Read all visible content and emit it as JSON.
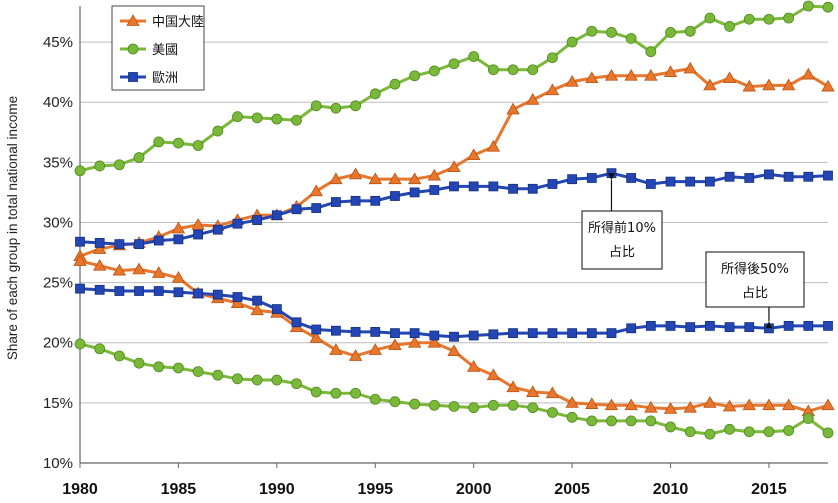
{
  "chart_data": {
    "type": "line",
    "ylabel": "Share of each group in total national income",
    "xlim": [
      1980,
      2018
    ],
    "ylim": [
      10,
      48
    ],
    "x_ticks": [
      1980,
      1985,
      1990,
      1995,
      2000,
      2005,
      2010,
      2015
    ],
    "y_ticks": [
      10,
      15,
      20,
      25,
      30,
      35,
      40,
      45
    ],
    "y_tick_labels": [
      "10%",
      "15%",
      "20%",
      "25%",
      "30%",
      "35%",
      "40%",
      "45%"
    ],
    "grid": "horizontal",
    "legend_position": "top-left",
    "x": [
      1980,
      1981,
      1982,
      1983,
      1984,
      1985,
      1986,
      1987,
      1988,
      1989,
      1990,
      1991,
      1992,
      1993,
      1994,
      1995,
      1996,
      1997,
      1998,
      1999,
      2000,
      2001,
      2002,
      2003,
      2004,
      2005,
      2006,
      2007,
      2008,
      2009,
      2010,
      2011,
      2012,
      2013,
      2014,
      2015,
      2016,
      2017,
      2018
    ],
    "series": [
      {
        "name": "中国大陸",
        "color": "#e8762c",
        "marker": "triangle",
        "group": "top10",
        "values": [
          27.2,
          27.8,
          28.1,
          28.3,
          28.8,
          29.5,
          29.8,
          29.7,
          30.2,
          30.6,
          30.6,
          31.3,
          32.6,
          33.6,
          34.0,
          33.6,
          33.6,
          33.6,
          33.9,
          34.6,
          35.6,
          36.3,
          39.4,
          40.2,
          41.0,
          41.7,
          42.0,
          42.2,
          42.2,
          42.2,
          42.5,
          42.8,
          41.4,
          42.0,
          41.3,
          41.4,
          41.4,
          42.3,
          41.3
        ]
      },
      {
        "name": "美國",
        "color": "#7ab83a",
        "marker": "circle",
        "group": "top10",
        "values": [
          34.3,
          34.7,
          34.8,
          35.4,
          36.7,
          36.6,
          36.4,
          37.6,
          38.8,
          38.7,
          38.6,
          38.5,
          39.7,
          39.5,
          39.7,
          40.7,
          41.5,
          42.2,
          42.6,
          43.2,
          43.8,
          42.7,
          42.7,
          42.7,
          43.7,
          45.0,
          45.9,
          45.8,
          45.3,
          44.2,
          45.8,
          45.9,
          47.0,
          46.3,
          46.9,
          46.9,
          47.0,
          48.0,
          47.9
        ]
      },
      {
        "name": "歐洲",
        "color": "#2346b4",
        "marker": "square",
        "group": "top10",
        "values": [
          28.4,
          28.3,
          28.2,
          28.2,
          28.5,
          28.6,
          29.0,
          29.4,
          29.9,
          30.2,
          30.6,
          31.1,
          31.2,
          31.7,
          31.8,
          31.8,
          32.2,
          32.5,
          32.7,
          33.0,
          33.0,
          33.0,
          32.8,
          32.8,
          33.2,
          33.6,
          33.7,
          34.1,
          33.7,
          33.2,
          33.4,
          33.4,
          33.4,
          33.8,
          33.7,
          34.0,
          33.8,
          33.8,
          33.9
        ]
      },
      {
        "name": "",
        "color": "#e8762c",
        "marker": "triangle",
        "group": "bottom50",
        "values": [
          26.8,
          26.4,
          26.0,
          26.1,
          25.8,
          25.4,
          24.1,
          23.7,
          23.3,
          22.7,
          22.5,
          21.3,
          20.4,
          19.4,
          18.9,
          19.4,
          19.8,
          20.0,
          20.0,
          19.3,
          18.0,
          17.3,
          16.3,
          15.9,
          15.8,
          15.0,
          14.9,
          14.8,
          14.8,
          14.6,
          14.5,
          14.6,
          15.0,
          14.7,
          14.8,
          14.8,
          14.8,
          14.3,
          14.8
        ]
      },
      {
        "name": "",
        "color": "#7ab83a",
        "marker": "circle",
        "group": "bottom50",
        "values": [
          19.9,
          19.5,
          18.9,
          18.3,
          18.0,
          17.9,
          17.6,
          17.3,
          17.0,
          16.9,
          16.9,
          16.6,
          15.9,
          15.8,
          15.8,
          15.3,
          15.1,
          14.9,
          14.8,
          14.7,
          14.6,
          14.8,
          14.8,
          14.6,
          14.2,
          13.8,
          13.5,
          13.5,
          13.5,
          13.5,
          13.0,
          12.6,
          12.4,
          12.8,
          12.6,
          12.6,
          12.7,
          13.7,
          12.5
        ]
      },
      {
        "name": "",
        "color": "#2346b4",
        "marker": "square",
        "group": "bottom50",
        "values": [
          24.5,
          24.4,
          24.3,
          24.3,
          24.3,
          24.2,
          24.1,
          24.0,
          23.8,
          23.5,
          22.8,
          21.7,
          21.1,
          21.0,
          20.9,
          20.9,
          20.8,
          20.8,
          20.6,
          20.5,
          20.6,
          20.7,
          20.8,
          20.8,
          20.8,
          20.8,
          20.8,
          20.8,
          21.2,
          21.4,
          21.4,
          21.3,
          21.4,
          21.3,
          21.3,
          21.2,
          21.4,
          21.4,
          21.4
        ]
      }
    ],
    "annotations": [
      {
        "id": "top10",
        "text_lines": [
          "所得前10%",
          "占比"
        ],
        "points_to": {
          "x": 2007,
          "y": 34.1
        }
      },
      {
        "id": "bottom50",
        "text_lines": [
          "所得後50%",
          "占比"
        ],
        "points_to": {
          "x": 2015,
          "y": 21.2
        }
      }
    ]
  }
}
